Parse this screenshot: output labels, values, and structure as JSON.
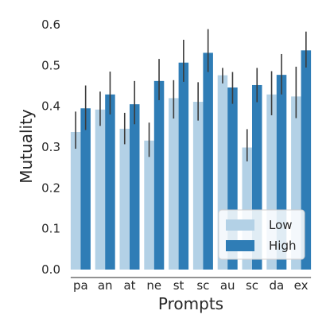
{
  "chart_data": {
    "type": "bar",
    "xlabel": "Prompts",
    "ylabel": "Mutuality",
    "ylim": [
      0.0,
      0.6
    ],
    "yticks": [
      "0.0",
      "0.1",
      "0.2",
      "0.3",
      "0.4",
      "0.5",
      "0.6"
    ],
    "categories": [
      "pa",
      "an",
      "at",
      "ne",
      "st",
      "sc",
      "au",
      "sc",
      "da",
      "ex"
    ],
    "grid": false,
    "legend_position": "bottom-right",
    "series": [
      {
        "name": "Low",
        "color": "#b3d1e6",
        "values": [
          0.337,
          0.392,
          0.345,
          0.316,
          0.42,
          0.411,
          0.476,
          0.299,
          0.429,
          0.424
        ],
        "error_low": [
          0.296,
          0.352,
          0.307,
          0.276,
          0.37,
          0.365,
          0.456,
          0.265,
          0.378,
          0.371
        ],
        "error_high": [
          0.387,
          0.436,
          0.384,
          0.36,
          0.464,
          0.459,
          0.494,
          0.344,
          0.486,
          0.497
        ]
      },
      {
        "name": "High",
        "color": "#2f7db6",
        "values": [
          0.395,
          0.429,
          0.405,
          0.462,
          0.507,
          0.531,
          0.446,
          0.452,
          0.477,
          0.537
        ],
        "error_low": [
          0.342,
          0.38,
          0.356,
          0.415,
          0.46,
          0.484,
          0.406,
          0.41,
          0.429,
          0.495
        ],
        "error_high": [
          0.451,
          0.485,
          0.462,
          0.516,
          0.563,
          0.589,
          0.484,
          0.494,
          0.528,
          0.583
        ]
      }
    ]
  }
}
